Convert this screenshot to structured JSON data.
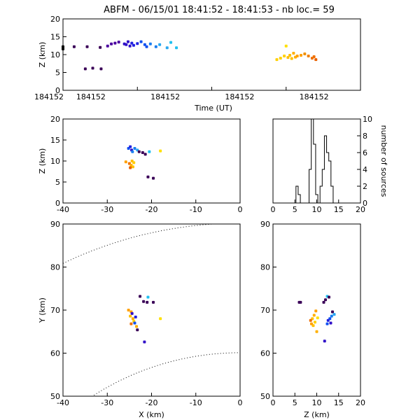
{
  "header": {
    "title": "ABFM - 06/15/01 18:41:52 - 18:41:53 - nb loc.=      59"
  },
  "chart_data": [
    {
      "type": "scatter",
      "id": "timeline",
      "xlabel": "Time (UT)",
      "ylabel": "Z (km)",
      "ylim": [
        0,
        20
      ],
      "yticks": [
        0,
        5,
        10,
        15,
        20
      ],
      "xticklabels": [
        "184152",
        "184152",
        "184152",
        "184152",
        "184152"
      ],
      "points": [
        {
          "t": 0.0,
          "z": 11.6,
          "c": "#000000"
        },
        {
          "t": 0.0,
          "z": 12.2,
          "c": "#000000"
        },
        {
          "t": 0.06,
          "z": 12.2,
          "c": "#3a0057"
        },
        {
          "t": 0.13,
          "z": 12.2,
          "c": "#3a0057"
        },
        {
          "t": 0.12,
          "z": 6.0,
          "c": "#3a0057"
        },
        {
          "t": 0.16,
          "z": 6.2,
          "c": "#3a0057"
        },
        {
          "t": 0.205,
          "z": 6.0,
          "c": "#3a0057"
        },
        {
          "t": 0.2,
          "z": 12.0,
          "c": "#3a0057"
        },
        {
          "t": 0.24,
          "z": 12.4,
          "c": "#4b00a0"
        },
        {
          "t": 0.26,
          "z": 13.0,
          "c": "#4b00a0"
        },
        {
          "t": 0.28,
          "z": 13.2,
          "c": "#4b00a0"
        },
        {
          "t": 0.3,
          "z": 13.5,
          "c": "#4b00a0"
        },
        {
          "t": 0.33,
          "z": 13.0,
          "c": "#3010c8"
        },
        {
          "t": 0.34,
          "z": 12.8,
          "c": "#3010c8"
        },
        {
          "t": 0.35,
          "z": 13.6,
          "c": "#3010c8"
        },
        {
          "t": 0.36,
          "z": 12.4,
          "c": "#3010c8"
        },
        {
          "t": 0.37,
          "z": 13.2,
          "c": "#2020e0"
        },
        {
          "t": 0.38,
          "z": 12.6,
          "c": "#2020e0"
        },
        {
          "t": 0.4,
          "z": 13.1,
          "c": "#2020e0"
        },
        {
          "t": 0.42,
          "z": 13.6,
          "c": "#1050f0"
        },
        {
          "t": 0.44,
          "z": 12.8,
          "c": "#1050f0"
        },
        {
          "t": 0.45,
          "z": 12.2,
          "c": "#1050f0"
        },
        {
          "t": 0.47,
          "z": 13.0,
          "c": "#1a7ef0"
        },
        {
          "t": 0.5,
          "z": 12.2,
          "c": "#1a7ef0"
        },
        {
          "t": 0.52,
          "z": 12.8,
          "c": "#2aa8f0"
        },
        {
          "t": 0.56,
          "z": 11.9,
          "c": "#2aa8f0"
        },
        {
          "t": 0.58,
          "z": 13.4,
          "c": "#20c0f0"
        },
        {
          "t": 0.61,
          "z": 11.9,
          "c": "#20c0f0"
        },
        {
          "t": 1.15,
          "z": 8.6,
          "c": "#ffd000"
        },
        {
          "t": 1.17,
          "z": 9.0,
          "c": "#ffd000"
        },
        {
          "t": 1.19,
          "z": 9.6,
          "c": "#ffd000"
        },
        {
          "t": 1.2,
          "z": 12.4,
          "c": "#ffe000"
        },
        {
          "t": 1.21,
          "z": 9.2,
          "c": "#ffc000"
        },
        {
          "t": 1.22,
          "z": 9.8,
          "c": "#ffc000"
        },
        {
          "t": 1.23,
          "z": 8.9,
          "c": "#ffc000"
        },
        {
          "t": 1.24,
          "z": 10.4,
          "c": "#ffb000"
        },
        {
          "t": 1.25,
          "z": 9.3,
          "c": "#ffb000"
        },
        {
          "t": 1.26,
          "z": 9.6,
          "c": "#ffa000"
        },
        {
          "t": 1.28,
          "z": 9.8,
          "c": "#ffa000"
        },
        {
          "t": 1.3,
          "z": 10.2,
          "c": "#f09000"
        },
        {
          "t": 1.32,
          "z": 9.6,
          "c": "#f08000"
        },
        {
          "t": 1.34,
          "z": 9.0,
          "c": "#f07000"
        },
        {
          "t": 1.35,
          "z": 9.4,
          "c": "#f07000"
        },
        {
          "t": 1.36,
          "z": 8.6,
          "c": "#e86000"
        }
      ]
    },
    {
      "type": "scatter",
      "id": "xz",
      "xlabel": "",
      "ylabel": "Z (km)",
      "xlim": [
        -40,
        0
      ],
      "ylim": [
        0,
        20
      ],
      "xticks": [
        -40,
        -30,
        -20,
        -10,
        0
      ],
      "yticks": [
        0,
        5,
        10,
        15,
        20
      ],
      "points": [
        {
          "x": -25.2,
          "z": 13.0,
          "c": "#1050f0"
        },
        {
          "x": -24.8,
          "z": 13.4,
          "c": "#2020e0"
        },
        {
          "x": -24.5,
          "z": 12.6,
          "c": "#3010c8"
        },
        {
          "x": -24.3,
          "z": 12.2,
          "c": "#1a7ef0"
        },
        {
          "x": -23.8,
          "z": 13.0,
          "c": "#1a7ef0"
        },
        {
          "x": -23.2,
          "z": 12.6,
          "c": "#2aa8f0"
        },
        {
          "x": -22.8,
          "z": 12.2,
          "c": "#3a0057"
        },
        {
          "x": -22.0,
          "z": 12.0,
          "c": "#3a0057"
        },
        {
          "x": -21.4,
          "z": 11.6,
          "c": "#3a0057"
        },
        {
          "x": -20.5,
          "z": 12.2,
          "c": "#20c0f0"
        },
        {
          "x": -18.0,
          "z": 12.4,
          "c": "#ffe000"
        },
        {
          "x": -20.8,
          "z": 6.2,
          "c": "#3a0057"
        },
        {
          "x": -19.6,
          "z": 5.9,
          "c": "#3a0057"
        },
        {
          "x": -25.8,
          "z": 9.8,
          "c": "#ffa000"
        },
        {
          "x": -25.0,
          "z": 9.4,
          "c": "#f07000"
        },
        {
          "x": -24.6,
          "z": 9.0,
          "c": "#ffb000"
        },
        {
          "x": -24.2,
          "z": 8.6,
          "c": "#ffc000"
        },
        {
          "x": -24.0,
          "z": 9.6,
          "c": "#ffd000"
        },
        {
          "x": -24.4,
          "z": 10.0,
          "c": "#ffc000"
        },
        {
          "x": -24.8,
          "z": 8.4,
          "c": "#e86000"
        }
      ]
    },
    {
      "type": "histogram",
      "id": "z-histogram",
      "xlabel": "",
      "ylabel": "number of sources",
      "xlim": [
        0,
        20
      ],
      "ylim": [
        0,
        10
      ],
      "xticks": [
        0,
        5,
        10,
        15,
        20
      ],
      "yticks": [
        0,
        2,
        4,
        6,
        8,
        10
      ],
      "bin_width": 0.5,
      "bins": [
        {
          "z": 5.5,
          "n": 2
        },
        {
          "z": 6.0,
          "n": 1
        },
        {
          "z": 6.5,
          "n": 0
        },
        {
          "z": 7.0,
          "n": 0
        },
        {
          "z": 7.5,
          "n": 0
        },
        {
          "z": 8.0,
          "n": 0
        },
        {
          "z": 8.5,
          "n": 4
        },
        {
          "z": 9.0,
          "n": 10
        },
        {
          "z": 9.5,
          "n": 7
        },
        {
          "z": 10.0,
          "n": 1
        },
        {
          "z": 10.5,
          "n": 0
        },
        {
          "z": 11.0,
          "n": 2
        },
        {
          "z": 11.5,
          "n": 4
        },
        {
          "z": 12.0,
          "n": 8
        },
        {
          "z": 12.5,
          "n": 6
        },
        {
          "z": 13.0,
          "n": 5
        },
        {
          "z": 13.5,
          "n": 2
        },
        {
          "z": 14.0,
          "n": 0
        }
      ]
    },
    {
      "type": "scatter",
      "id": "xy",
      "xlabel": "X (km)",
      "ylabel": "Y (km)",
      "xlim": [
        -40,
        0
      ],
      "ylim": [
        50,
        90
      ],
      "xticks": [
        -40,
        -30,
        -20,
        -10,
        0
      ],
      "yticks": [
        50,
        60,
        70,
        80,
        90
      ],
      "points": [
        {
          "x": -22.6,
          "y": 73.2,
          "c": "#3a0057"
        },
        {
          "x": -21.8,
          "y": 72.0,
          "c": "#3a0057"
        },
        {
          "x": -21.0,
          "y": 71.8,
          "c": "#3a0057"
        },
        {
          "x": -19.6,
          "y": 71.8,
          "c": "#3a0057"
        },
        {
          "x": -20.8,
          "y": 73.0,
          "c": "#20c0f0"
        },
        {
          "x": -25.2,
          "y": 70.0,
          "c": "#ffa000"
        },
        {
          "x": -24.6,
          "y": 69.6,
          "c": "#ffa000"
        },
        {
          "x": -24.4,
          "y": 69.2,
          "c": "#3010c8"
        },
        {
          "x": -24.8,
          "y": 68.6,
          "c": "#ffc000"
        },
        {
          "x": -24.2,
          "y": 68.0,
          "c": "#ffb000"
        },
        {
          "x": -23.6,
          "y": 68.4,
          "c": "#2020e0"
        },
        {
          "x": -24.0,
          "y": 67.4,
          "c": "#ffd000"
        },
        {
          "x": -23.8,
          "y": 67.0,
          "c": "#1050f0"
        },
        {
          "x": -24.6,
          "y": 66.8,
          "c": "#f07000"
        },
        {
          "x": -23.4,
          "y": 66.2,
          "c": "#ffb000"
        },
        {
          "x": -23.2,
          "y": 65.4,
          "c": "#3a0057"
        },
        {
          "x": -18.0,
          "y": 68.0,
          "c": "#ffe000"
        },
        {
          "x": -21.6,
          "y": 62.6,
          "c": "#3010c8"
        }
      ]
    },
    {
      "type": "scatter",
      "id": "zy",
      "xlabel": "Z (km)",
      "ylabel": "",
      "xlim": [
        0,
        20
      ],
      "ylim": [
        50,
        90
      ],
      "xticks": [
        0,
        5,
        10,
        15,
        20
      ],
      "yticks": [
        50,
        60,
        70,
        80,
        90
      ],
      "points": [
        {
          "z": 6.0,
          "y": 71.8,
          "c": "#3a0057"
        },
        {
          "z": 6.3,
          "y": 71.8,
          "c": "#3a0057"
        },
        {
          "z": 11.6,
          "y": 71.8,
          "c": "#3a0057"
        },
        {
          "z": 12.0,
          "y": 72.4,
          "c": "#3a0057"
        },
        {
          "z": 12.4,
          "y": 73.2,
          "c": "#20c0f0"
        },
        {
          "z": 12.8,
          "y": 73.0,
          "c": "#3a0057"
        },
        {
          "z": 13.6,
          "y": 69.6,
          "c": "#3a0057"
        },
        {
          "z": 14.0,
          "y": 69.0,
          "c": "#2aa8f0"
        },
        {
          "z": 13.4,
          "y": 68.6,
          "c": "#1a7ef0"
        },
        {
          "z": 13.0,
          "y": 68.0,
          "c": "#1050f0"
        },
        {
          "z": 12.6,
          "y": 67.6,
          "c": "#2020e0"
        },
        {
          "z": 13.2,
          "y": 67.0,
          "c": "#3010c8"
        },
        {
          "z": 12.4,
          "y": 66.8,
          "c": "#1050f0"
        },
        {
          "z": 11.8,
          "y": 62.8,
          "c": "#3010c8"
        },
        {
          "z": 9.8,
          "y": 69.8,
          "c": "#ffa000"
        },
        {
          "z": 9.4,
          "y": 68.8,
          "c": "#ffb000"
        },
        {
          "z": 9.0,
          "y": 68.0,
          "c": "#ffc000"
        },
        {
          "z": 8.6,
          "y": 67.6,
          "c": "#f07000"
        },
        {
          "z": 9.6,
          "y": 67.2,
          "c": "#ffd000"
        },
        {
          "z": 10.2,
          "y": 68.2,
          "c": "#ffe000"
        },
        {
          "z": 9.2,
          "y": 66.4,
          "c": "#ffc000"
        },
        {
          "z": 10.0,
          "y": 65.0,
          "c": "#ffb000"
        },
        {
          "z": 8.8,
          "y": 66.8,
          "c": "#ffa000"
        }
      ]
    }
  ]
}
